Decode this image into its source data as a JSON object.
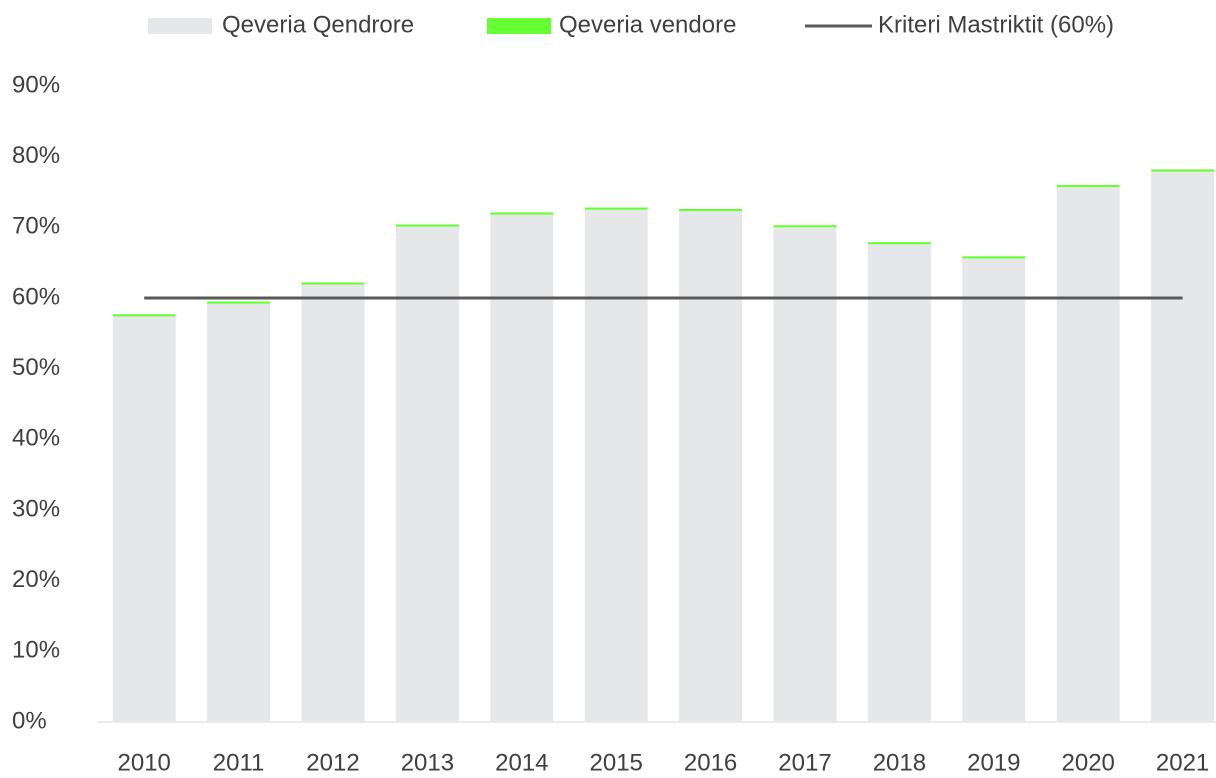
{
  "chart_data": {
    "type": "bar",
    "categories": [
      "2010",
      "2011",
      "2012",
      "2013",
      "2014",
      "2015",
      "2016",
      "2017",
      "2018",
      "2019",
      "2020",
      "2021"
    ],
    "series": [
      {
        "name": "Qeveria Qendrore",
        "color": "#e6e7e8",
        "values": [
          57.4,
          59.2,
          61.9,
          70.1,
          71.8,
          72.5,
          72.3,
          70.0,
          67.6,
          65.6,
          75.7,
          77.9
        ]
      },
      {
        "name": "Qeveria vendore",
        "color": "#66ff33",
        "values": [
          0.3,
          0.3,
          0.3,
          0.3,
          0.3,
          0.3,
          0.3,
          0.3,
          0.3,
          0.3,
          0.3,
          0.3
        ]
      },
      {
        "name": "Kriteri Mastriktit (60%)",
        "type": "line",
        "color": "#595959",
        "values": [
          60,
          60,
          60,
          60,
          60,
          60,
          60,
          60,
          60,
          60,
          60,
          60
        ]
      }
    ],
    "stacked": true,
    "ylim": [
      0,
      90
    ],
    "yticks": [
      {
        "value": 0,
        "label": "0%"
      },
      {
        "value": 10,
        "label": "10%"
      },
      {
        "value": 20,
        "label": "20%"
      },
      {
        "value": 30,
        "label": "30%"
      },
      {
        "value": 40,
        "label": "40%"
      },
      {
        "value": 50,
        "label": "50%"
      },
      {
        "value": 60,
        "label": "60%"
      },
      {
        "value": 70,
        "label": "70%"
      },
      {
        "value": 80,
        "label": "80%"
      },
      {
        "value": 90,
        "label": "90%"
      }
    ],
    "grid": false,
    "legend": "top"
  }
}
